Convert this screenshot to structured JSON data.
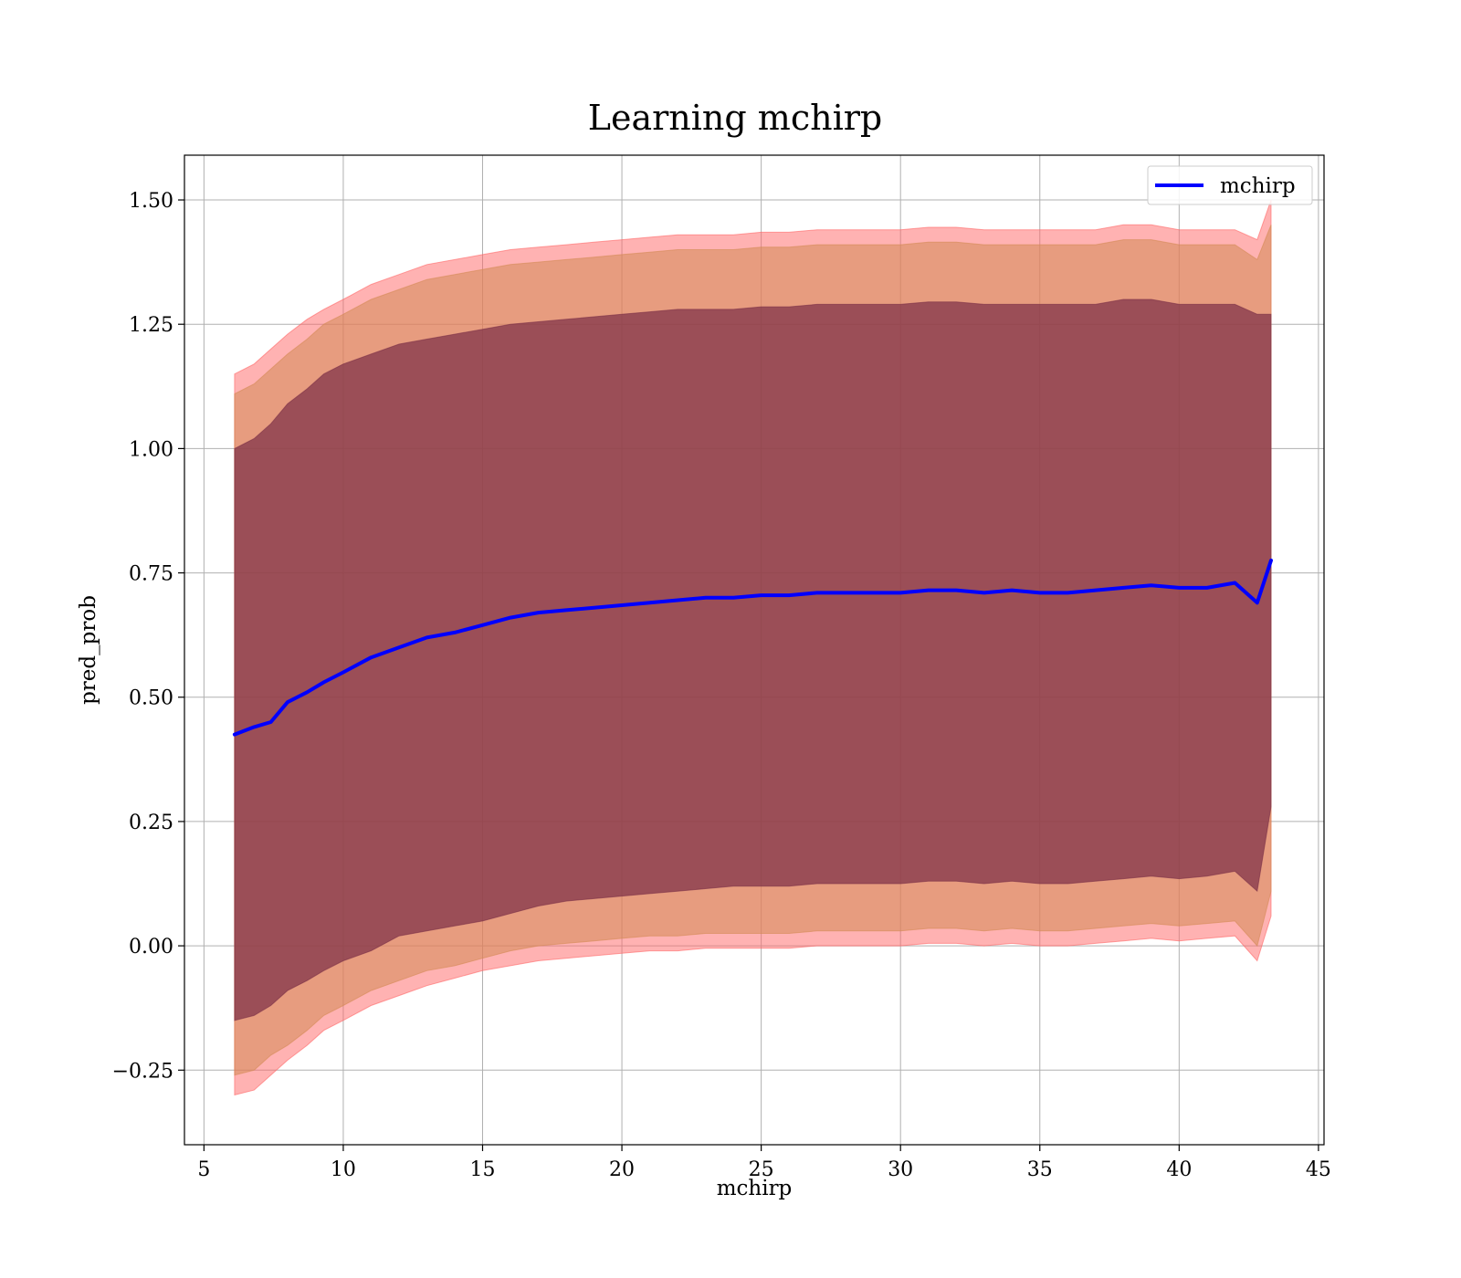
{
  "chart_data": {
    "type": "line",
    "title": "Learning mchirp",
    "xlabel": "mchirp",
    "ylabel": "pred_prob",
    "xlim": [
      4.3,
      45.2
    ],
    "ylim": [
      -0.4,
      1.59
    ],
    "xticks": [
      5,
      10,
      15,
      20,
      25,
      30,
      35,
      40,
      45
    ],
    "xtick_labels": [
      "5",
      "10",
      "15",
      "20",
      "25",
      "30",
      "35",
      "40",
      "45"
    ],
    "yticks": [
      -0.25,
      0.0,
      0.25,
      0.5,
      0.75,
      1.0,
      1.25,
      1.5
    ],
    "ytick_labels": [
      "−0.25",
      "0.00",
      "0.25",
      "0.50",
      "0.75",
      "1.00",
      "1.25",
      "1.50"
    ],
    "grid": true,
    "legend": {
      "placement": "upper right",
      "entries": [
        {
          "name": "mchirp",
          "color": "#0000ff"
        }
      ]
    },
    "series": [
      {
        "name": "mchirp",
        "color": "#0000ff",
        "x": [
          6.1,
          6.8,
          7.4,
          8.0,
          8.7,
          9.3,
          10.0,
          11.0,
          12.0,
          13.0,
          14.0,
          15.0,
          16.0,
          17.0,
          18.0,
          19.0,
          20.0,
          21.0,
          22.0,
          23.0,
          24.0,
          25.0,
          26.0,
          27.0,
          28.0,
          29.0,
          30.0,
          31.0,
          32.0,
          33.0,
          34.0,
          35.0,
          36.0,
          37.0,
          38.0,
          39.0,
          40.0,
          41.0,
          42.0,
          42.8,
          43.3
        ],
        "y": [
          0.425,
          0.44,
          0.45,
          0.49,
          0.51,
          0.53,
          0.55,
          0.58,
          0.6,
          0.62,
          0.63,
          0.645,
          0.66,
          0.67,
          0.675,
          0.68,
          0.685,
          0.69,
          0.695,
          0.7,
          0.7,
          0.705,
          0.705,
          0.71,
          0.71,
          0.71,
          0.71,
          0.715,
          0.715,
          0.71,
          0.715,
          0.71,
          0.71,
          0.715,
          0.72,
          0.725,
          0.72,
          0.72,
          0.73,
          0.69,
          0.775
        ]
      }
    ],
    "bands": [
      {
        "name": "band_1sigma",
        "color": "#7a2e46",
        "opacity": 0.7,
        "upper": [
          1.0,
          1.02,
          1.05,
          1.09,
          1.12,
          1.15,
          1.17,
          1.19,
          1.21,
          1.22,
          1.23,
          1.24,
          1.25,
          1.255,
          1.26,
          1.265,
          1.27,
          1.275,
          1.28,
          1.28,
          1.28,
          1.285,
          1.285,
          1.29,
          1.29,
          1.29,
          1.29,
          1.295,
          1.295,
          1.29,
          1.29,
          1.29,
          1.29,
          1.29,
          1.3,
          1.3,
          1.29,
          1.29,
          1.29,
          1.27,
          1.27
        ],
        "lower": [
          -0.15,
          -0.14,
          -0.12,
          -0.09,
          -0.07,
          -0.05,
          -0.03,
          -0.01,
          0.02,
          0.03,
          0.04,
          0.05,
          0.065,
          0.08,
          0.09,
          0.095,
          0.1,
          0.105,
          0.11,
          0.115,
          0.12,
          0.12,
          0.12,
          0.125,
          0.125,
          0.125,
          0.125,
          0.13,
          0.13,
          0.125,
          0.13,
          0.125,
          0.125,
          0.13,
          0.135,
          0.14,
          0.135,
          0.14,
          0.15,
          0.11,
          0.28
        ]
      },
      {
        "name": "band_2sigma",
        "color": "#d48a55",
        "opacity": 0.55,
        "upper": [
          1.11,
          1.13,
          1.16,
          1.19,
          1.22,
          1.25,
          1.27,
          1.3,
          1.32,
          1.34,
          1.35,
          1.36,
          1.37,
          1.375,
          1.38,
          1.385,
          1.39,
          1.395,
          1.4,
          1.4,
          1.4,
          1.405,
          1.405,
          1.41,
          1.41,
          1.41,
          1.41,
          1.415,
          1.415,
          1.41,
          1.41,
          1.41,
          1.41,
          1.41,
          1.42,
          1.42,
          1.41,
          1.41,
          1.41,
          1.38,
          1.45
        ],
        "lower": [
          -0.26,
          -0.25,
          -0.22,
          -0.2,
          -0.17,
          -0.14,
          -0.12,
          -0.09,
          -0.07,
          -0.05,
          -0.04,
          -0.025,
          -0.01,
          0.0,
          0.005,
          0.01,
          0.015,
          0.02,
          0.02,
          0.025,
          0.025,
          0.025,
          0.025,
          0.03,
          0.03,
          0.03,
          0.03,
          0.035,
          0.035,
          0.03,
          0.035,
          0.03,
          0.03,
          0.035,
          0.04,
          0.045,
          0.04,
          0.045,
          0.05,
          0.0,
          0.11
        ]
      },
      {
        "name": "band_3sigma",
        "color": "#ff6666",
        "opacity": 0.5,
        "upper": [
          1.15,
          1.17,
          1.2,
          1.23,
          1.26,
          1.28,
          1.3,
          1.33,
          1.35,
          1.37,
          1.38,
          1.39,
          1.4,
          1.405,
          1.41,
          1.415,
          1.42,
          1.425,
          1.43,
          1.43,
          1.43,
          1.435,
          1.435,
          1.44,
          1.44,
          1.44,
          1.44,
          1.445,
          1.445,
          1.44,
          1.44,
          1.44,
          1.44,
          1.44,
          1.45,
          1.45,
          1.44,
          1.44,
          1.44,
          1.42,
          1.5
        ],
        "lower": [
          -0.3,
          -0.29,
          -0.26,
          -0.23,
          -0.2,
          -0.17,
          -0.15,
          -0.12,
          -0.1,
          -0.08,
          -0.065,
          -0.05,
          -0.04,
          -0.03,
          -0.025,
          -0.02,
          -0.015,
          -0.01,
          -0.01,
          -0.005,
          -0.005,
          -0.005,
          -0.005,
          0.0,
          0.0,
          0.0,
          0.0,
          0.005,
          0.005,
          0.0,
          0.005,
          0.0,
          0.0,
          0.005,
          0.01,
          0.015,
          0.01,
          0.015,
          0.02,
          -0.03,
          0.06
        ]
      }
    ]
  }
}
